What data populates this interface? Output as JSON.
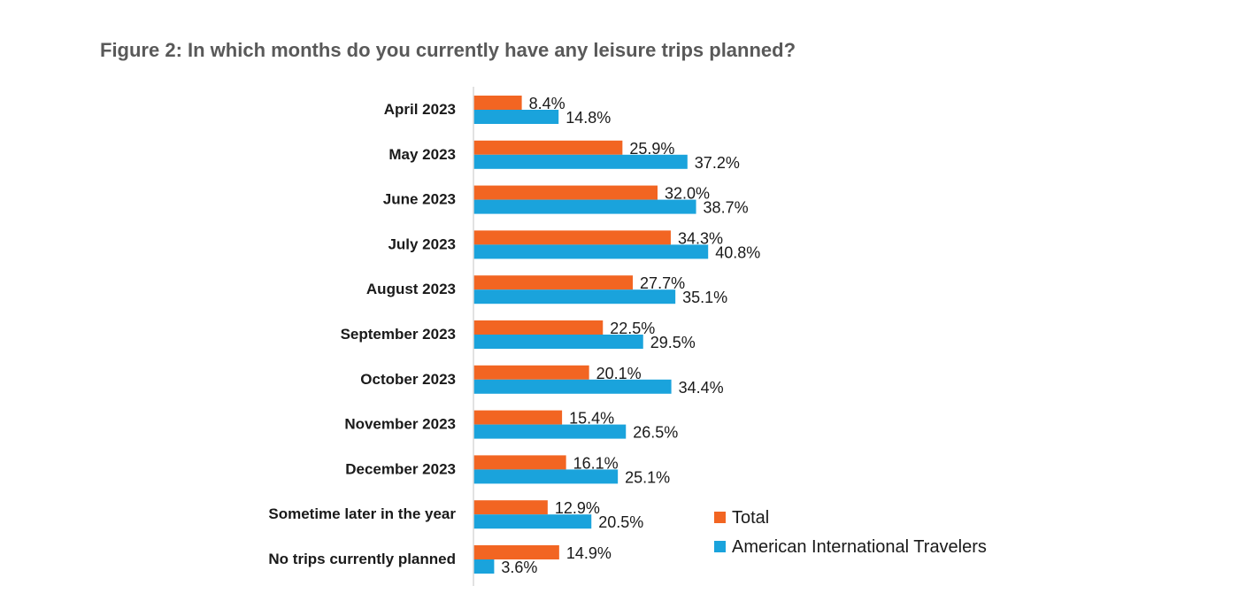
{
  "chart_data": {
    "type": "bar",
    "orientation": "horizontal",
    "title": "Figure 2: In which months do you currently have any leisure trips planned?",
    "categories": [
      "April 2023",
      "May 2023",
      "June 2023",
      "July 2023",
      "August 2023",
      "September 2023",
      "October 2023",
      "November 2023",
      "December 2023",
      "Sometime later in the year",
      "No trips currently planned"
    ],
    "series": [
      {
        "name": "Total",
        "color": "#f26522",
        "values": [
          8.4,
          25.9,
          32.0,
          34.3,
          27.7,
          22.5,
          20.1,
          15.4,
          16.1,
          12.9,
          14.9
        ],
        "labels": [
          "8.4%",
          "25.9%",
          "32.0%",
          "34.3%",
          "27.7%",
          "22.5%",
          "20.1%",
          "15.4%",
          "16.1%",
          "12.9%",
          "14.9%"
        ]
      },
      {
        "name": "American International Travelers",
        "color": "#1aa3dc",
        "values": [
          14.8,
          37.2,
          38.7,
          40.8,
          35.1,
          29.5,
          34.4,
          26.5,
          25.1,
          20.5,
          3.6
        ],
        "labels": [
          "14.8%",
          "37.2%",
          "38.7%",
          "40.8%",
          "35.1%",
          "29.5%",
          "34.4%",
          "26.5%",
          "25.1%",
          "20.5%",
          "3.6%"
        ]
      }
    ],
    "xlim": [
      0,
      100
    ],
    "unit": "%",
    "grid": false,
    "legend_position": "bottom-right",
    "axis_color": "#d9d9d9"
  }
}
